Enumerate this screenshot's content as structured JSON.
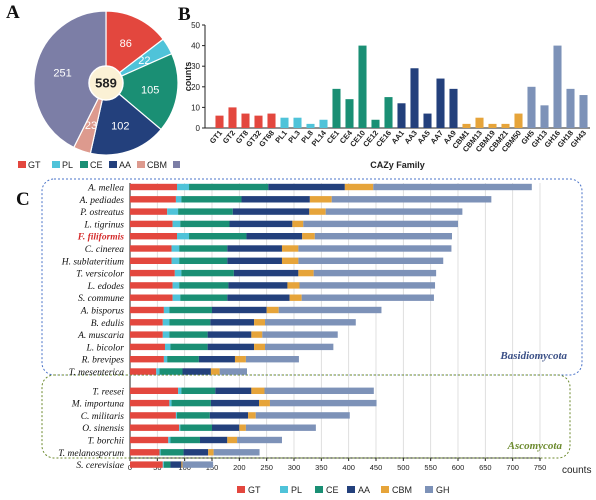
{
  "panel_labels": {
    "a": "A",
    "b": "B",
    "c": "C"
  },
  "colors": {
    "GT": "#e3473e",
    "PL": "#4fc3d9",
    "CE": "#1a8f74",
    "AA": "#23407c",
    "CBM": "#e6a43a",
    "GH": "#7d92b8",
    "pie_CBM": "#dd9a8e",
    "pie_GH": "#7c7ea6"
  },
  "chart_data": [
    {
      "id": "A",
      "type": "pie",
      "slices": [
        {
          "name": "GT",
          "value": 86
        },
        {
          "name": "PL",
          "value": 22
        },
        {
          "name": "CE",
          "value": 105
        },
        {
          "name": "AA",
          "value": 102
        },
        {
          "name": "CBM",
          "value": 23
        },
        {
          "name": "GH",
          "value": 251
        }
      ],
      "center_label": "589",
      "legend": [
        "GT",
        "PL",
        "CE",
        "AA",
        "CBM",
        "GH"
      ]
    },
    {
      "id": "B",
      "type": "bar",
      "xlabel": "CAZy Family",
      "ylabel": "counts",
      "ylim": [
        0,
        50
      ],
      "yticks": [
        0,
        10,
        20,
        30,
        40,
        50
      ],
      "categories": [
        "GT1",
        "GT2",
        "GT8",
        "GT32",
        "GT68",
        "PL1",
        "PL3",
        "PL8",
        "PL14",
        "CE1",
        "CE4",
        "CE10",
        "CE12",
        "CE16",
        "AA1",
        "AA3",
        "AA5",
        "AA7",
        "AA9",
        "CBM1",
        "CBM13",
        "CBM19",
        "CBM21",
        "CBM50",
        "GH5",
        "GH13",
        "GH16",
        "GH18",
        "GH43"
      ],
      "values": [
        6,
        10,
        7,
        6,
        7,
        5,
        5,
        2,
        4,
        19,
        14,
        40,
        4,
        15,
        12,
        29,
        7,
        24,
        19,
        2,
        5,
        2,
        2,
        7,
        20,
        11,
        40,
        19,
        16
      ],
      "groups": [
        "GT",
        "GT",
        "GT",
        "GT",
        "GT",
        "PL",
        "PL",
        "PL",
        "PL",
        "CE",
        "CE",
        "CE",
        "CE",
        "CE",
        "AA",
        "AA",
        "AA",
        "AA",
        "AA",
        "CBM",
        "CBM",
        "CBM",
        "CBM",
        "CBM",
        "GH",
        "GH",
        "GH",
        "GH",
        "GH"
      ]
    },
    {
      "id": "C",
      "type": "bar",
      "orientation": "horizontal",
      "stacked": true,
      "xlabel": "counts",
      "xlim": [
        0,
        750
      ],
      "xticks": [
        0,
        50,
        100,
        150,
        200,
        250,
        300,
        350,
        400,
        450,
        500,
        550,
        600,
        650,
        700,
        750
      ],
      "grid": true,
      "series_names": [
        "GT",
        "PL",
        "CE",
        "AA",
        "CBM",
        "GH"
      ],
      "legend": [
        "GT",
        "PL",
        "CE",
        "AA",
        "CBM",
        "GH"
      ],
      "highlight": "F. filiformis",
      "group_labels": {
        "basidio": "Basidiomycota",
        "asco": "Ascomycota"
      },
      "species": [
        {
          "name": "A. mellea",
          "values": [
            86,
            22,
            145,
            140,
            52,
            290
          ]
        },
        {
          "name": "A. pediades",
          "values": [
            84,
            10,
            110,
            125,
            40,
            292
          ]
        },
        {
          "name": "P. ostreatus",
          "values": [
            68,
            20,
            100,
            140,
            30,
            250
          ]
        },
        {
          "name": "L. tigrinus",
          "values": [
            78,
            14,
            90,
            115,
            20,
            283
          ]
        },
        {
          "name": "F. filiformis",
          "values": [
            86,
            22,
            105,
            102,
            23,
            251
          ]
        },
        {
          "name": "C. cinerea",
          "values": [
            76,
            14,
            88,
            100,
            30,
            280
          ]
        },
        {
          "name": "H. sublateritium",
          "values": [
            76,
            14,
            88,
            100,
            30,
            265
          ]
        },
        {
          "name": "T. versicolor",
          "values": [
            82,
            12,
            96,
            118,
            28,
            224
          ]
        },
        {
          "name": "L. edodes",
          "values": [
            78,
            12,
            90,
            108,
            22,
            248
          ]
        },
        {
          "name": "S. commune",
          "values": [
            78,
            14,
            86,
            114,
            22,
            242
          ]
        },
        {
          "name": "A. bisporus",
          "values": [
            62,
            10,
            78,
            100,
            22,
            188
          ]
        },
        {
          "name": "B. edulis",
          "values": [
            60,
            12,
            75,
            80,
            20,
            166
          ]
        },
        {
          "name": "A. muscaria",
          "values": [
            60,
            12,
            70,
            80,
            20,
            138
          ]
        },
        {
          "name": "L. bicolor",
          "values": [
            64,
            10,
            68,
            85,
            20,
            125
          ]
        },
        {
          "name": "R. brevipes",
          "values": [
            62,
            6,
            58,
            66,
            20,
            97
          ]
        },
        {
          "name": "T. mesenterica",
          "values": [
            48,
            6,
            42,
            52,
            16,
            50
          ]
        },
        {
          "name": "T. reesei",
          "values": [
            88,
            6,
            62,
            66,
            24,
            200
          ]
        },
        {
          "name": "M. importuna",
          "values": [
            72,
            4,
            72,
            88,
            20,
            195
          ]
        },
        {
          "name": "C. militaris",
          "values": [
            84,
            2,
            60,
            70,
            14,
            172
          ]
        },
        {
          "name": "O. sinensis",
          "values": [
            90,
            2,
            58,
            50,
            12,
            128
          ]
        },
        {
          "name": "T. borchii",
          "values": [
            70,
            4,
            54,
            50,
            18,
            82
          ]
        },
        {
          "name": "T. melanosporum",
          "values": [
            54,
            2,
            42,
            45,
            10,
            84
          ]
        },
        {
          "name": "S. cerevisiae",
          "values": [
            60,
            2,
            12,
            20,
            2,
            56
          ]
        }
      ]
    }
  ]
}
